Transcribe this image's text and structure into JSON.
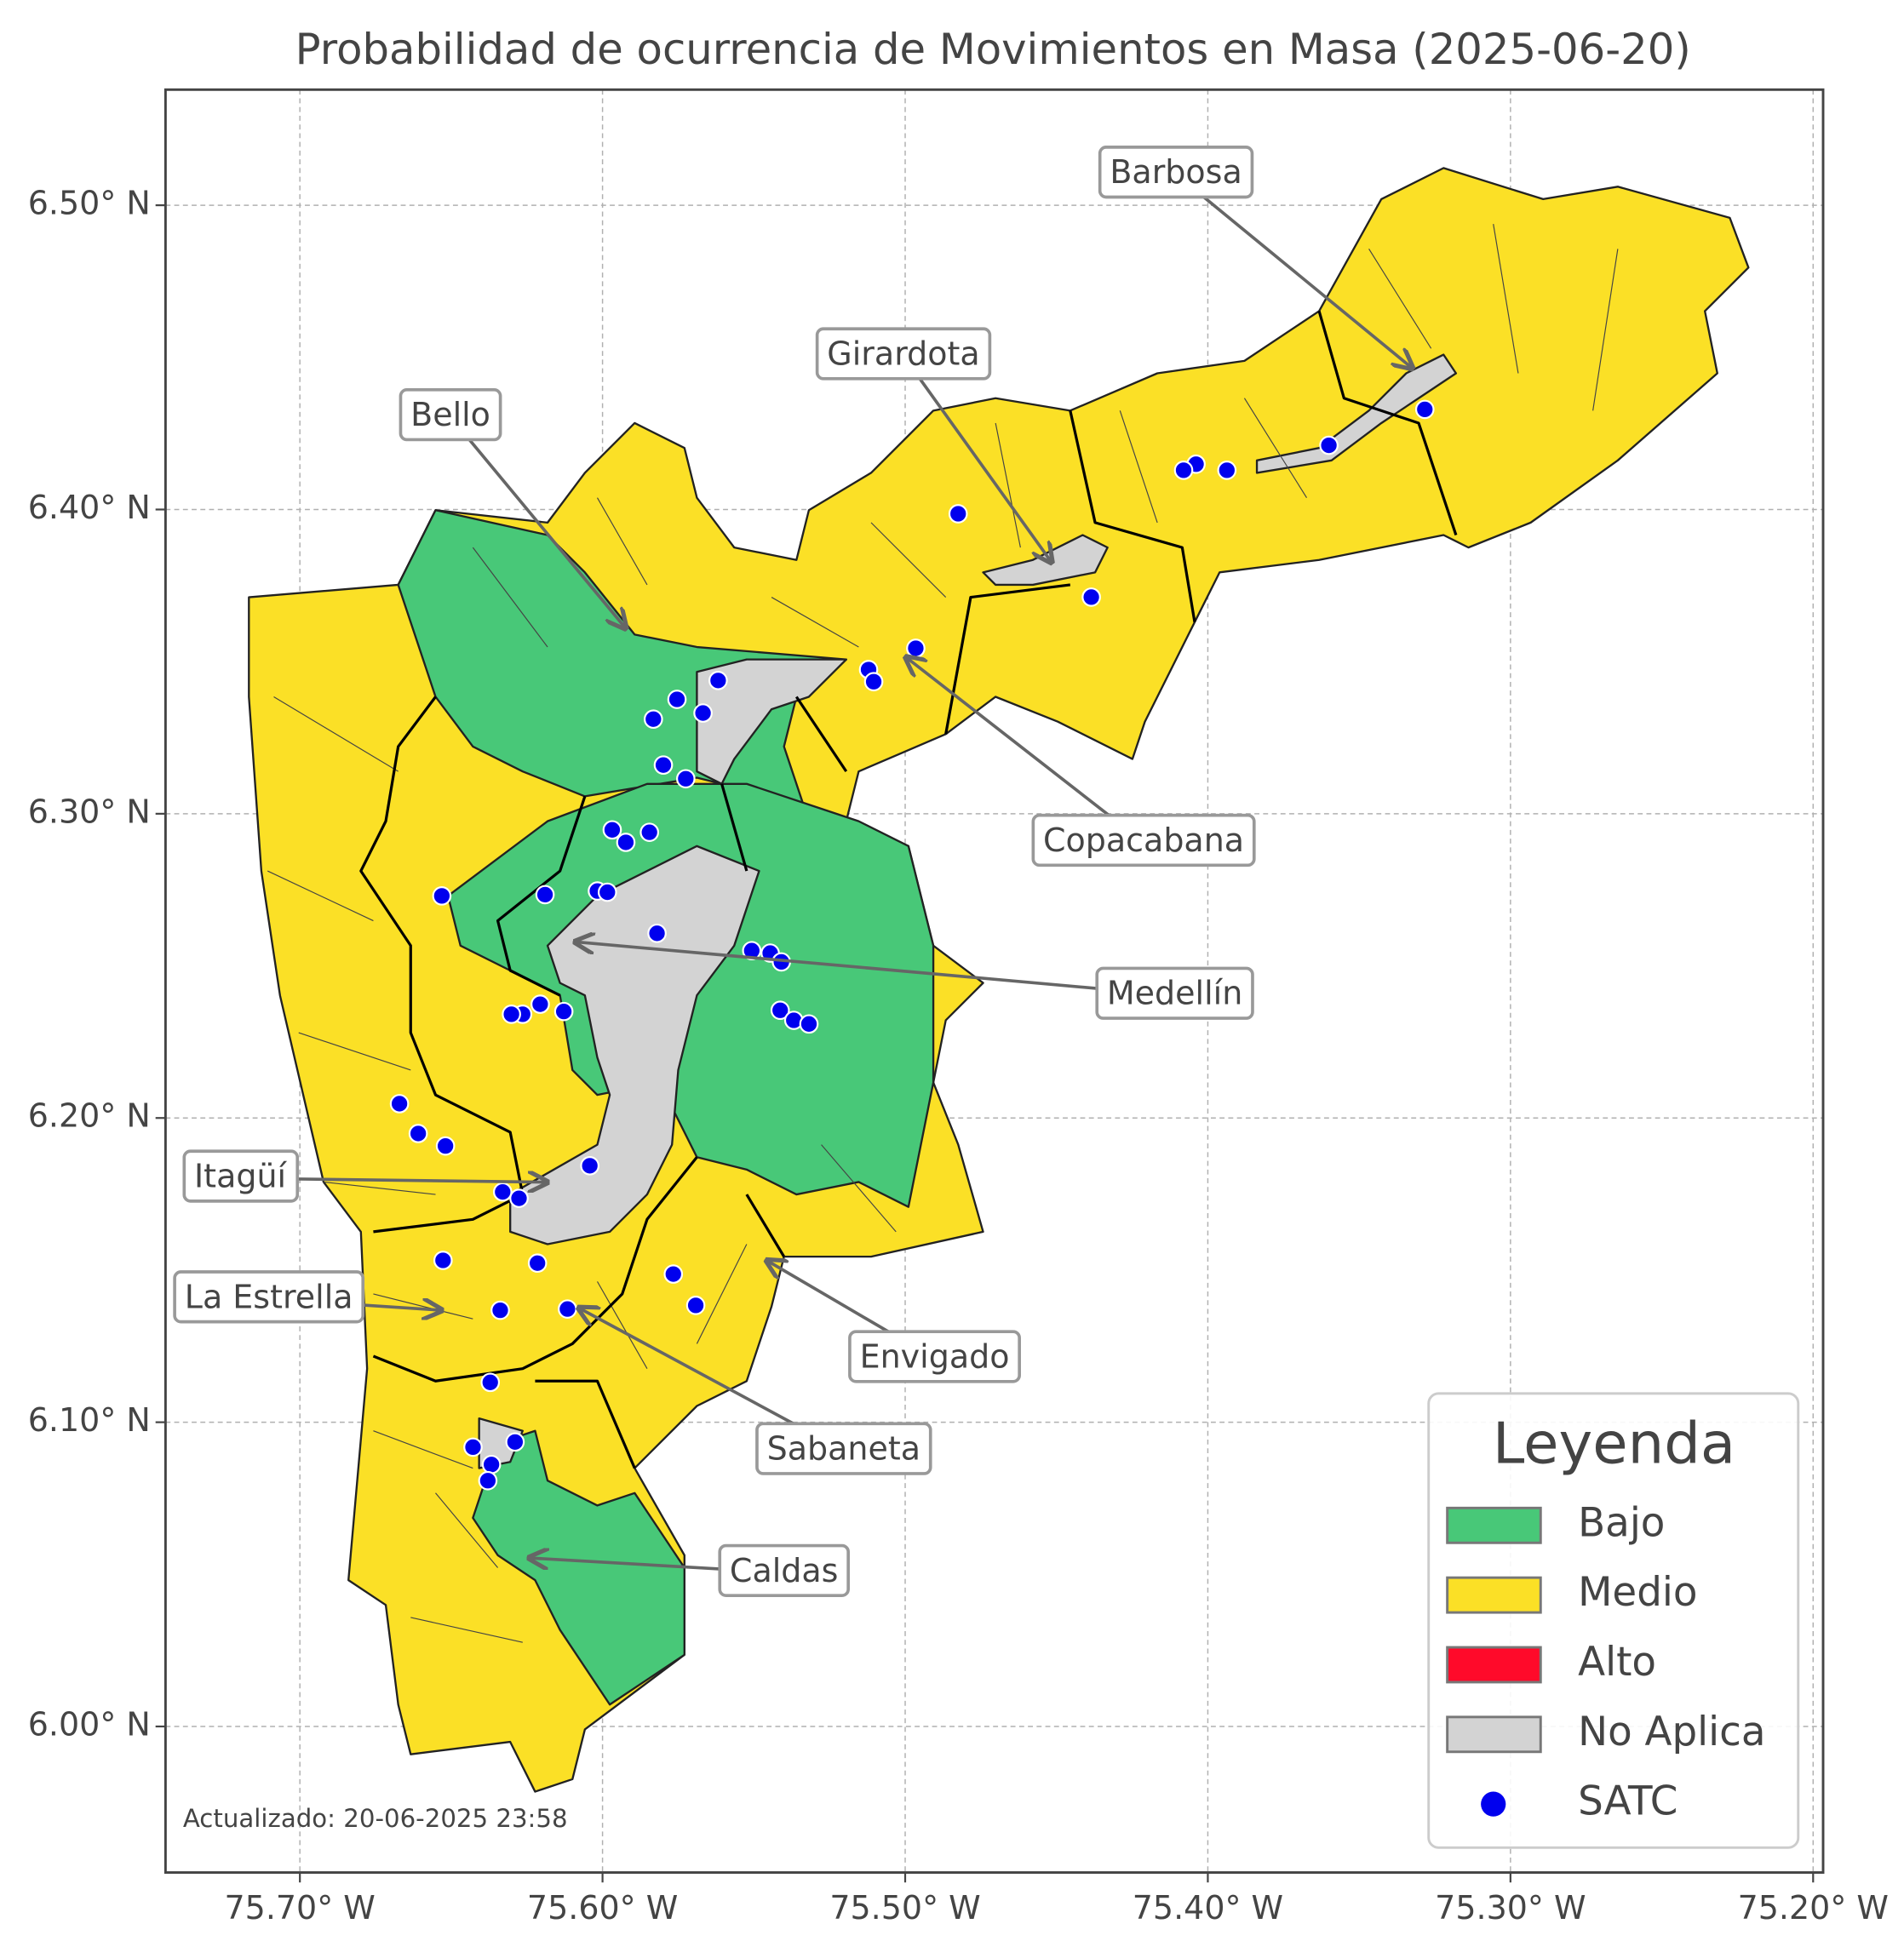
{
  "title": "Probabilidad de ocurrencia de Movimientos en Masa (2025-06-20)",
  "map": {
    "xlim": [
      -75.7444,
      -75.1967
    ],
    "ylim": [
      5.952,
      6.538
    ],
    "grid": true,
    "xticks": [
      {
        "value": -75.7,
        "label": "75.70° W"
      },
      {
        "value": -75.6,
        "label": "75.60° W"
      },
      {
        "value": -75.5,
        "label": "75.50° W"
      },
      {
        "value": -75.4,
        "label": "75.40° W"
      },
      {
        "value": -75.3,
        "label": "75.30° W"
      },
      {
        "value": -75.2,
        "label": "75.20° W"
      }
    ],
    "yticks": [
      {
        "value": 6.0,
        "label": "6.00° N"
      },
      {
        "value": 6.1,
        "label": "6.10° N"
      },
      {
        "value": 6.2,
        "label": "6.20° N"
      },
      {
        "value": 6.3,
        "label": "6.30° N"
      },
      {
        "value": 6.4,
        "label": "6.40° N"
      },
      {
        "value": 6.5,
        "label": "6.50° N"
      }
    ]
  },
  "annotations": [
    {
      "label": "Barbosa",
      "lon": -75.3324,
      "lat": 6.4464
    },
    {
      "label": "Girardota",
      "lon": -75.4516,
      "lat": 6.3826
    },
    {
      "label": "Bello",
      "lon": -75.5923,
      "lat": 6.3609
    },
    {
      "label": "Copacabana",
      "lon": -75.4998,
      "lat": 6.3515
    },
    {
      "label": "Medellín",
      "lon": -75.6091,
      "lat": 6.2579
    },
    {
      "label": "Itagüí",
      "lon": -75.6182,
      "lat": 6.1789
    },
    {
      "label": "La Estrella",
      "lon": -75.6531,
      "lat": 6.1368
    },
    {
      "label": "Envigado",
      "lon": -75.5458,
      "lat": 6.1532
    },
    {
      "label": "Sabaneta",
      "lon": -75.6079,
      "lat": 6.1376
    },
    {
      "label": "Caldas",
      "lon": -75.6243,
      "lat": 6.0554
    }
  ],
  "stations": {
    "name": "SATC",
    "color": "#0000ee",
    "lon": [
      -75.3283,
      -75.36,
      -75.3937,
      -75.4039,
      -75.408,
      -75.4825,
      -75.4385,
      -75.4965,
      -75.5121,
      -75.5104,
      -75.5618,
      -75.5754,
      -75.5668,
      -75.5832,
      -75.5799,
      -75.5725,
      -75.5968,
      -75.5923,
      -75.5845,
      -75.619,
      -75.6017,
      -75.5984,
      -75.6531,
      -75.582,
      -75.5507,
      -75.5446,
      -75.5409,
      -75.5413,
      -75.5368,
      -75.5318,
      -75.6206,
      -75.6264,
      -75.6301,
      -75.6128,
      -75.6671,
      -75.6609,
      -75.6519,
      -75.6042,
      -75.633,
      -75.6276,
      -75.6527,
      -75.6215,
      -75.5766,
      -75.5692,
      -75.6338,
      -75.6116,
      -75.6371,
      -75.6428,
      -75.6289,
      -75.6367,
      -75.6379
    ],
    "lat": [
      6.4329,
      6.4211,
      6.4129,
      6.4149,
      6.4129,
      6.3986,
      6.3712,
      6.3544,
      6.3474,
      6.3434,
      6.3438,
      6.3376,
      6.3331,
      6.3311,
      6.316,
      6.3115,
      6.2947,
      6.2906,
      6.2939,
      6.2734,
      6.2746,
      6.2742,
      6.273,
      6.2607,
      6.255,
      6.2542,
      6.2513,
      6.2354,
      6.2321,
      6.2309,
      6.2374,
      6.2341,
      6.2341,
      6.235,
      6.2047,
      6.1949,
      6.1908,
      6.1843,
      6.1757,
      6.1736,
      6.1532,
      6.1523,
      6.1487,
      6.1384,
      6.1368,
      6.1372,
      6.1131,
      6.0918,
      6.0935,
      6.0861,
      6.0808
    ]
  },
  "legend": {
    "title": "Leyenda",
    "items": [
      {
        "label": "Bajo",
        "color": "#48c878"
      },
      {
        "label": "Medio",
        "color": "#fbe026"
      },
      {
        "label": "Alto",
        "color": "#ff0a2a"
      },
      {
        "label": "No Aplica",
        "color": "#d3d3d3"
      }
    ]
  },
  "footnote": "Actualizado: 20-06-2025 23:58"
}
